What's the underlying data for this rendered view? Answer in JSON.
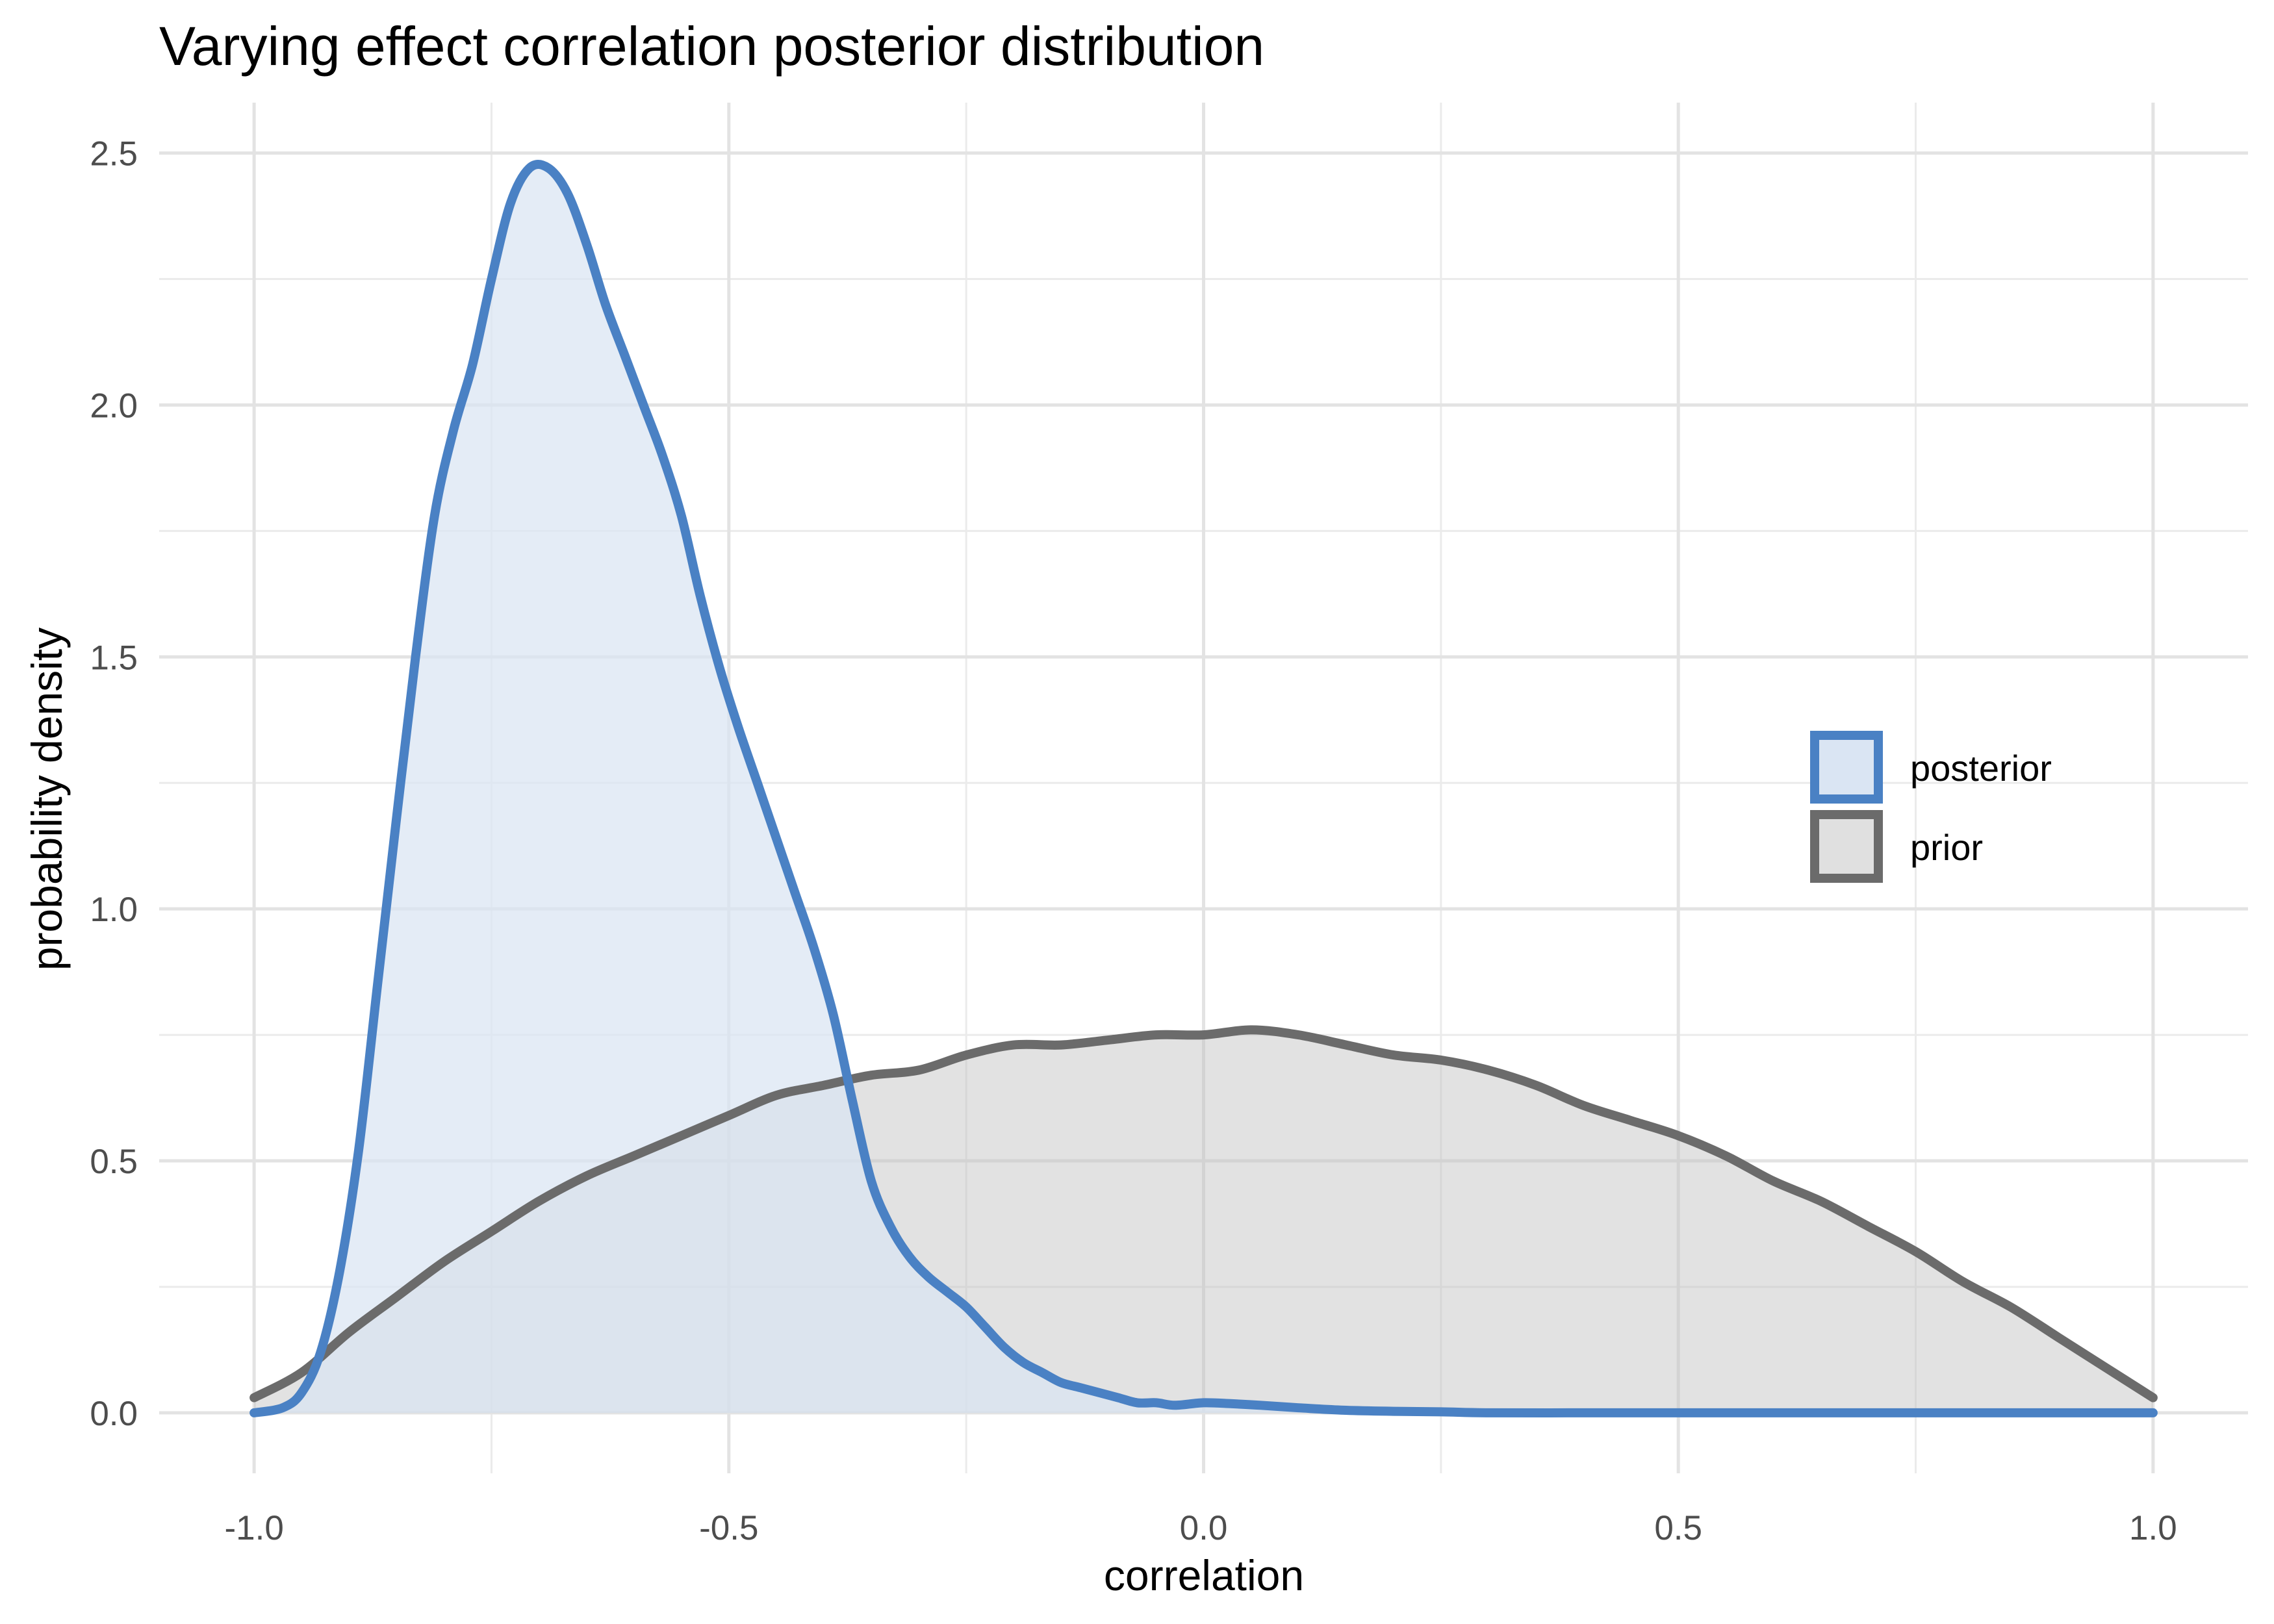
{
  "chart_data": {
    "type": "area",
    "title": "Varying effect correlation posterior distribution",
    "xlabel": "correlation",
    "ylabel": "probability density",
    "xlim": [
      -1.1,
      1.1
    ],
    "ylim": [
      -0.12,
      2.6
    ],
    "x_ticks": [
      "-1.0",
      "-0.5",
      "0.0",
      "0.5",
      "1.0"
    ],
    "y_ticks": [
      "0.0",
      "0.5",
      "1.0",
      "1.5",
      "2.0",
      "2.5"
    ],
    "grid": true,
    "legend_position": "right",
    "series": [
      {
        "name": "posterior",
        "line_color": "#4a81c4",
        "fill_color": "#dae5f3",
        "x": [
          -1.0,
          -0.97,
          -0.95,
          -0.93,
          -0.91,
          -0.89,
          -0.87,
          -0.85,
          -0.83,
          -0.81,
          -0.79,
          -0.77,
          -0.75,
          -0.73,
          -0.71,
          -0.69,
          -0.67,
          -0.65,
          -0.63,
          -0.61,
          -0.59,
          -0.57,
          -0.55,
          -0.53,
          -0.51,
          -0.49,
          -0.47,
          -0.45,
          -0.43,
          -0.41,
          -0.39,
          -0.37,
          -0.35,
          -0.33,
          -0.31,
          -0.29,
          -0.27,
          -0.25,
          -0.23,
          -0.21,
          -0.19,
          -0.17,
          -0.15,
          -0.13,
          -0.11,
          -0.09,
          -0.07,
          -0.05,
          -0.03,
          0.0,
          0.03,
          0.06,
          0.1,
          0.15,
          0.2,
          0.25,
          0.3,
          0.4,
          0.5,
          0.6,
          0.7,
          0.8,
          0.9,
          1.0
        ],
        "y": [
          0.0,
          0.01,
          0.04,
          0.12,
          0.28,
          0.52,
          0.85,
          1.18,
          1.5,
          1.78,
          1.95,
          2.08,
          2.25,
          2.4,
          2.47,
          2.47,
          2.42,
          2.32,
          2.2,
          2.1,
          2.0,
          1.9,
          1.78,
          1.62,
          1.48,
          1.36,
          1.25,
          1.14,
          1.03,
          0.92,
          0.79,
          0.62,
          0.46,
          0.37,
          0.31,
          0.27,
          0.24,
          0.21,
          0.17,
          0.13,
          0.1,
          0.08,
          0.06,
          0.05,
          0.04,
          0.03,
          0.02,
          0.02,
          0.015,
          0.02,
          0.018,
          0.015,
          0.01,
          0.005,
          0.003,
          0.002,
          0.0,
          0.0,
          0.0,
          0.0,
          0.0,
          0.0,
          0.0,
          0.0
        ]
      },
      {
        "name": "prior",
        "line_color": "#6b6b6b",
        "fill_color": "#bfbfbf",
        "x": [
          -1.0,
          -0.95,
          -0.9,
          -0.85,
          -0.8,
          -0.75,
          -0.7,
          -0.65,
          -0.6,
          -0.55,
          -0.5,
          -0.45,
          -0.4,
          -0.35,
          -0.3,
          -0.25,
          -0.2,
          -0.15,
          -0.1,
          -0.05,
          0.0,
          0.05,
          0.1,
          0.15,
          0.2,
          0.25,
          0.3,
          0.35,
          0.4,
          0.45,
          0.5,
          0.55,
          0.6,
          0.65,
          0.7,
          0.75,
          0.8,
          0.85,
          0.9,
          0.95,
          1.0
        ],
        "y": [
          0.03,
          0.08,
          0.16,
          0.23,
          0.3,
          0.36,
          0.42,
          0.47,
          0.51,
          0.55,
          0.59,
          0.63,
          0.65,
          0.67,
          0.68,
          0.71,
          0.73,
          0.73,
          0.74,
          0.75,
          0.75,
          0.76,
          0.75,
          0.73,
          0.71,
          0.7,
          0.68,
          0.65,
          0.61,
          0.58,
          0.55,
          0.51,
          0.46,
          0.42,
          0.37,
          0.32,
          0.26,
          0.21,
          0.15,
          0.09,
          0.03
        ]
      }
    ]
  }
}
